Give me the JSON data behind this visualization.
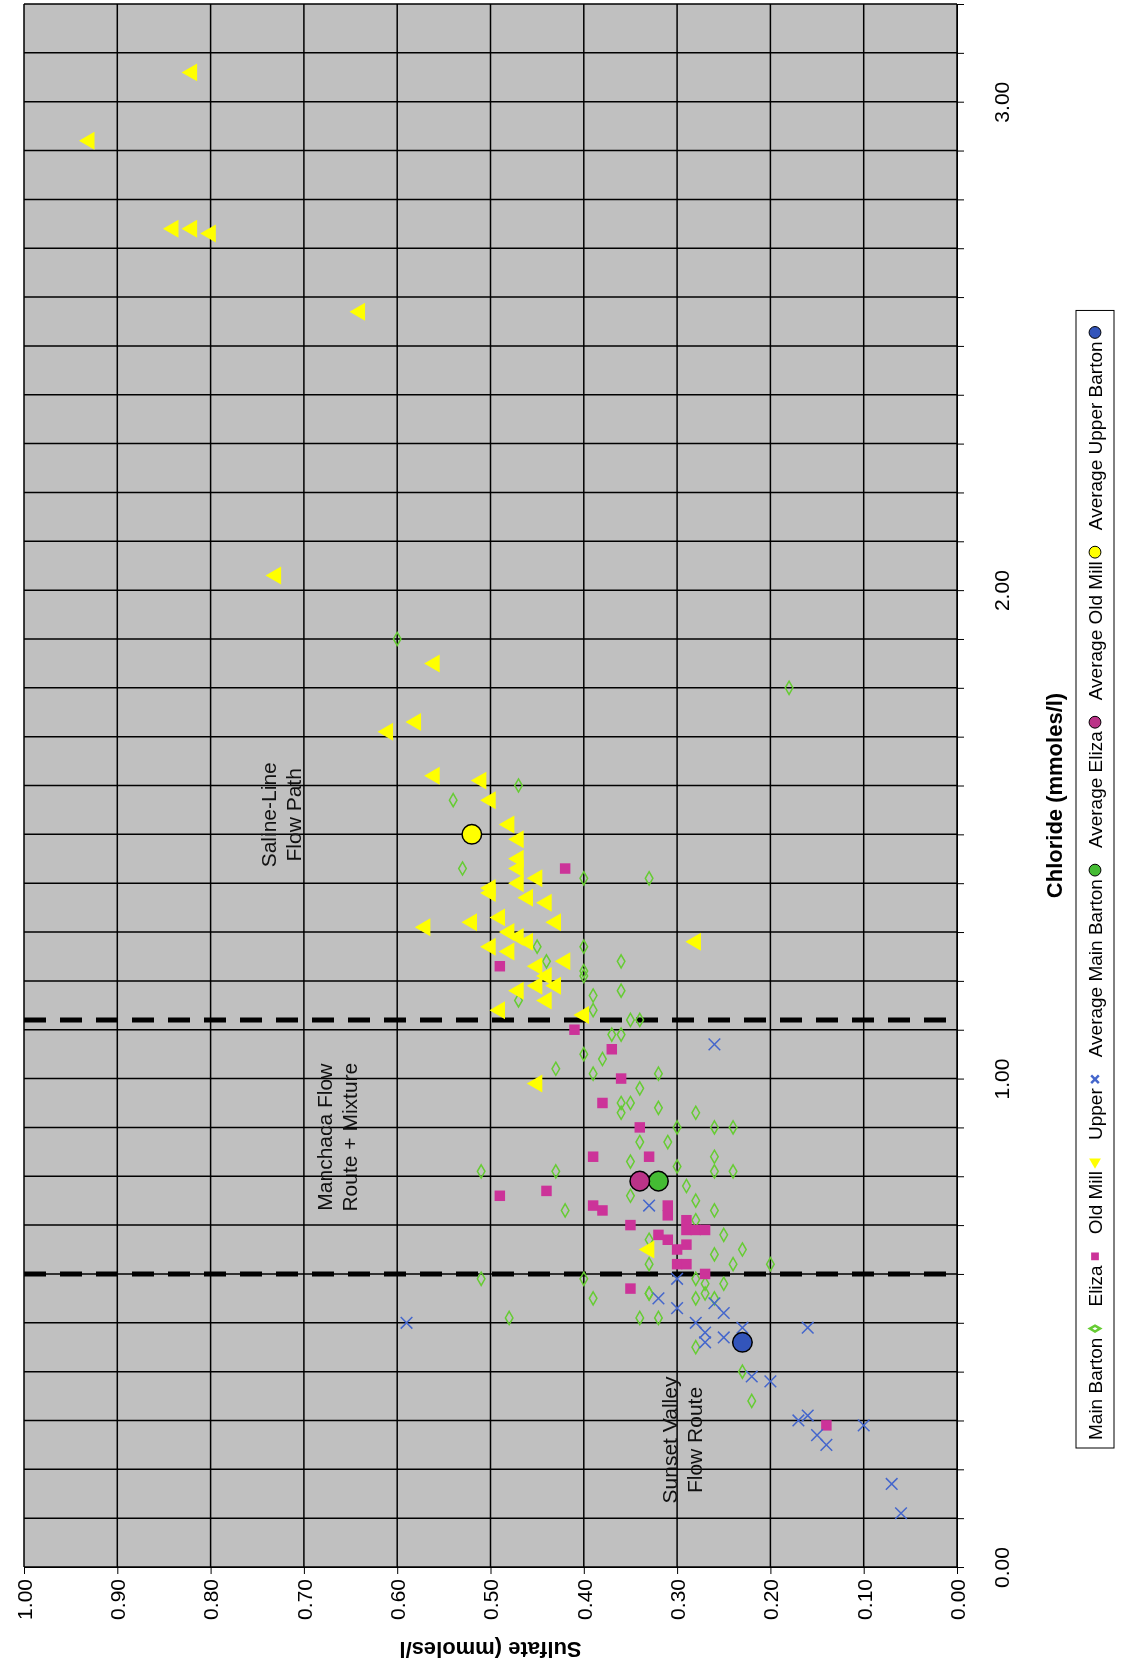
{
  "chart_data": {
    "type": "scatter",
    "xlabel": "Sulfate (mmoles/l",
    "ylabel": "Chloride (mmoles/l)",
    "xlim": [
      1,
      0
    ],
    "ylim": [
      0,
      3.2
    ],
    "yticks": [
      {
        "value": 0,
        "label": "0.00"
      },
      {
        "value": 0.1,
        "label": null
      },
      {
        "value": 0.2,
        "label": null
      },
      {
        "value": 0.3,
        "label": null
      },
      {
        "value": 0.4,
        "label": null
      },
      {
        "value": 0.5,
        "label": null
      },
      {
        "value": 0.6,
        "label": null
      },
      {
        "value": 0.7,
        "label": null
      },
      {
        "value": 0.8,
        "label": null
      },
      {
        "value": 0.9,
        "label": null
      },
      {
        "value": 1,
        "label": "1.00"
      },
      {
        "value": 1.1,
        "label": null
      },
      {
        "value": 1.2,
        "label": null
      },
      {
        "value": 1.3,
        "label": null
      },
      {
        "value": 1.4,
        "label": null
      },
      {
        "value": 1.5,
        "label": null
      },
      {
        "value": 1.6,
        "label": null
      },
      {
        "value": 1.7,
        "label": null
      },
      {
        "value": 1.8,
        "label": null
      },
      {
        "value": 1.9,
        "label": null
      },
      {
        "value": 2,
        "label": "2.00"
      },
      {
        "value": 2.1,
        "label": null
      },
      {
        "value": 2.2,
        "label": null
      },
      {
        "value": 2.3,
        "label": null
      },
      {
        "value": 2.4,
        "label": null
      },
      {
        "value": 2.5,
        "label": null
      },
      {
        "value": 2.6,
        "label": null
      },
      {
        "value": 2.7,
        "label": null
      },
      {
        "value": 2.8,
        "label": null
      },
      {
        "value": 2.9,
        "label": null
      },
      {
        "value": 3,
        "label": "3.00"
      },
      {
        "value": 3.1,
        "label": null
      },
      {
        "value": 3.2,
        "label": null
      }
    ],
    "xticks": [
      {
        "value": 0,
        "label": "0.00"
      },
      {
        "value": 0.1,
        "label": "0.10"
      },
      {
        "value": 0.2,
        "label": "0.20"
      },
      {
        "value": 0.3,
        "label": "0.30"
      },
      {
        "value": 0.4,
        "label": "0.40"
      },
      {
        "value": 0.5,
        "label": "0.50"
      },
      {
        "value": 0.6,
        "label": "0.60"
      },
      {
        "value": 0.7,
        "label": "0.70"
      },
      {
        "value": 0.8,
        "label": "0.80"
      },
      {
        "value": 0.9,
        "label": "0.90"
      },
      {
        "value": 1,
        "label": "1.00"
      }
    ],
    "grid": true,
    "legend": "right",
    "ref_lines": [
      {
        "axis": "y",
        "value": 0.6,
        "color": "#000000",
        "line_style": "dashed"
      },
      {
        "axis": "y",
        "value": 1.12,
        "color": "#000000",
        "line_style": "dashed"
      }
    ],
    "annotations": [
      "Saline-Line Flow Path",
      "Manchaca Flow Route + Mixture",
      "Sunset Valley Flow Route"
    ],
    "series": [
      {
        "name": "Main Barton",
        "color": "#66cc33",
        "marker": "diamond",
        "values": [
          1.6,
          1.57,
          1.43,
          1.41,
          1.41,
          1.27,
          1.27,
          1.24,
          1.24,
          1.22,
          1.21,
          1.17,
          1.18,
          1.16,
          1.14,
          1.12,
          1.12,
          1.09,
          1.09,
          1.05,
          1.02,
          1.04,
          1.01,
          1.01,
          0.98,
          0.95,
          0.95,
          0.94,
          0.93,
          0.9,
          0.9,
          0.93,
          0.9,
          0.87,
          0.87,
          0.84,
          0.81,
          0.81,
          0.81,
          0.81,
          0.83,
          0.82,
          0.76,
          0.78,
          0.75,
          0.73,
          0.73,
          0.71,
          0.68,
          0.65,
          0.62,
          0.62,
          0.62,
          0.67,
          0.59,
          0.58,
          0.58,
          0.59,
          0.55,
          0.56,
          0.55,
          0.55,
          0.51,
          0.51,
          0.59,
          0.51,
          0.64,
          0.56,
          0.45,
          0.4,
          0.34,
          0.56,
          1.9,
          1.8
        ],
        "x": [
          0.47,
          0.54,
          0.53,
          0.4,
          0.33,
          0.45,
          0.4,
          0.44,
          0.36,
          0.4,
          0.4,
          0.39,
          0.36,
          0.47,
          0.39,
          0.35,
          0.34,
          0.37,
          0.36,
          0.4,
          0.43,
          0.38,
          0.39,
          0.32,
          0.34,
          0.36,
          0.35,
          0.32,
          0.28,
          0.26,
          0.24,
          0.36,
          0.3,
          0.34,
          0.31,
          0.26,
          0.26,
          0.24,
          0.43,
          0.51,
          0.35,
          0.3,
          0.35,
          0.29,
          0.28,
          0.42,
          0.26,
          0.28,
          0.25,
          0.23,
          0.24,
          0.2,
          0.33,
          0.33,
          0.28,
          0.27,
          0.25,
          0.4,
          0.39,
          0.33,
          0.26,
          0.28,
          0.34,
          0.48,
          0.51,
          0.32,
          0.26,
          0.33,
          0.28,
          0.23,
          0.22,
          0.27,
          0.6,
          0.18
        ]
      },
      {
        "name": "Eliza",
        "color": "#cc3399",
        "marker": "square",
        "values": [
          1.43,
          1.23,
          1.1,
          1.06,
          1.0,
          0.95,
          0.9,
          0.84,
          0.84,
          0.77,
          0.76,
          0.74,
          0.73,
          0.7,
          0.74,
          0.72,
          0.71,
          0.69,
          0.68,
          0.67,
          0.69,
          0.69,
          0.66,
          0.65,
          0.62,
          0.62,
          0.6,
          0.57,
          0.29
        ],
        "x": [
          0.42,
          0.49,
          0.41,
          0.37,
          0.36,
          0.38,
          0.34,
          0.39,
          0.33,
          0.44,
          0.49,
          0.39,
          0.38,
          0.35,
          0.31,
          0.31,
          0.29,
          0.29,
          0.32,
          0.31,
          0.28,
          0.27,
          0.29,
          0.3,
          0.3,
          0.29,
          0.27,
          0.35,
          0.14
        ]
      },
      {
        "name": "Old Mill",
        "color": "#ffff00",
        "marker": "triangle",
        "values": [
          3.06,
          2.92,
          2.74,
          2.74,
          2.73,
          2.57,
          2.03,
          1.85,
          1.71,
          1.73,
          1.62,
          1.61,
          1.57,
          1.52,
          1.49,
          1.45,
          1.43,
          1.39,
          1.38,
          1.4,
          1.41,
          1.37,
          1.36,
          1.32,
          1.31,
          1.32,
          1.33,
          1.3,
          1.29,
          1.28,
          1.27,
          1.26,
          1.23,
          1.24,
          1.21,
          1.19,
          1.19,
          1.18,
          1.16,
          1.14,
          1.13,
          1.28,
          0.99,
          0.65
        ],
        "x": [
          0.82,
          0.93,
          0.84,
          0.82,
          0.8,
          0.64,
          0.73,
          0.56,
          0.61,
          0.58,
          0.56,
          0.51,
          0.5,
          0.48,
          0.47,
          0.47,
          0.47,
          0.5,
          0.5,
          0.47,
          0.45,
          0.46,
          0.44,
          0.43,
          0.57,
          0.52,
          0.49,
          0.48,
          0.47,
          0.46,
          0.5,
          0.48,
          0.45,
          0.42,
          0.44,
          0.43,
          0.45,
          0.47,
          0.44,
          0.49,
          0.4,
          0.28,
          0.45,
          0.33
        ]
      },
      {
        "name": "Upper",
        "color": "#4466cc",
        "marker": "cross",
        "values": [
          1.07,
          0.5,
          0.49,
          0.74,
          0.59,
          0.55,
          0.53,
          0.54,
          0.52,
          0.49,
          0.5,
          0.48,
          0.47,
          0.46,
          0.39,
          0.38,
          0.3,
          0.31,
          0.27,
          0.25,
          0.29,
          0.17,
          0.11
        ],
        "x": [
          0.26,
          0.59,
          0.16,
          0.33,
          0.3,
          0.32,
          0.3,
          0.26,
          0.25,
          0.23,
          0.28,
          0.27,
          0.25,
          0.27,
          0.22,
          0.2,
          0.17,
          0.16,
          0.15,
          0.14,
          0.1,
          0.07,
          0.06
        ]
      },
      {
        "name": "Average Main Barton",
        "color": "#44bb33",
        "marker": "circle",
        "values": [
          0.79
        ],
        "x": [
          0.32
        ]
      },
      {
        "name": "Average Eliza",
        "color": "#bb3388",
        "marker": "circle",
        "values": [
          0.79
        ],
        "x": [
          0.34
        ]
      },
      {
        "name": "Average Old Mill",
        "color": "#ffff00",
        "marker": "circle",
        "values": [
          1.5
        ],
        "x": [
          0.52
        ]
      },
      {
        "name": "Average Upper Barton",
        "color": "#3355bb",
        "marker": "circle",
        "values": [
          0.46
        ],
        "x": [
          0.23
        ]
      }
    ]
  }
}
